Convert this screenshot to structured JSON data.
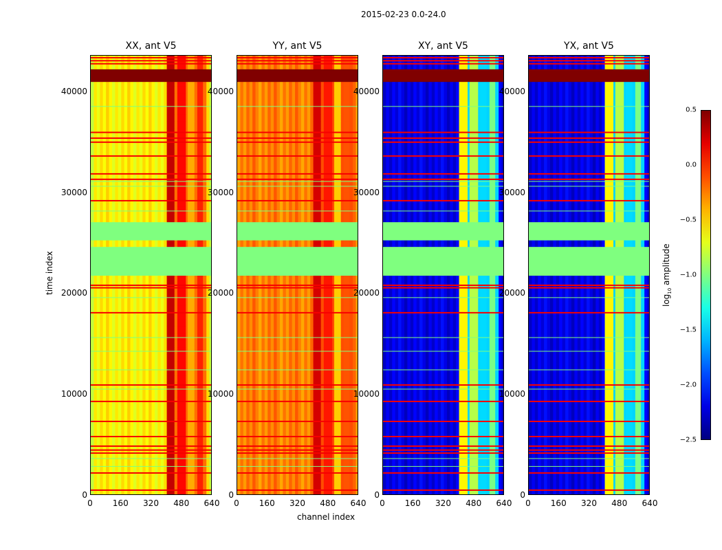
{
  "chart_data": {
    "type": "heatmap",
    "title": "2015-02-23 0.0-24.0",
    "xlabel": "channel index",
    "ylabel": "time index",
    "xlim": [
      0,
      640
    ],
    "ylim": [
      0,
      43600
    ],
    "xticks": [
      "0",
      "160",
      "320",
      "480",
      "640"
    ],
    "yticks": [
      "0",
      "10000",
      "20000",
      "30000",
      "40000"
    ],
    "xtick_values": [
      0,
      160,
      320,
      480,
      640
    ],
    "ytick_values": [
      0,
      10000,
      20000,
      30000,
      40000
    ],
    "colorbar": {
      "label": "log10 amplitude",
      "label_main": "log",
      "label_sub": "10",
      "label_rest": " amplitude",
      "range": [
        -2.5,
        0.5
      ],
      "ticks": [
        "0.5",
        "0.0",
        "−0.5",
        "−1.0",
        "−1.5",
        "−2.0",
        "−2.5"
      ],
      "tick_values": [
        0.5,
        0.0,
        -0.5,
        -1.0,
        -1.5,
        -2.0,
        -2.5
      ],
      "colormap": "jet"
    },
    "panels": [
      {
        "title": "XX, ant V5",
        "base": -0.6,
        "edge": -0.8,
        "rfi": [
          [
            400,
            440,
            0.3
          ],
          [
            455,
            500,
            0.35
          ],
          [
            510,
            545,
            0.1
          ],
          [
            560,
            590,
            0.15
          ]
        ],
        "rfi_bg": -0.2
      },
      {
        "title": "YY, ant V5",
        "base": -0.25,
        "edge": -0.35,
        "rfi": [
          [
            400,
            440,
            0.25
          ],
          [
            455,
            500,
            0.3
          ],
          [
            510,
            545,
            0.0
          ],
          [
            560,
            590,
            0.0
          ]
        ],
        "rfi_bg": -0.1
      },
      {
        "title": "XY, ant V5",
        "base": -2.2,
        "edge": -2.3,
        "rfi": [
          [
            400,
            445,
            -0.6
          ],
          [
            455,
            500,
            -0.6
          ],
          [
            510,
            545,
            -1.0
          ],
          [
            560,
            590,
            -0.9
          ]
        ],
        "rfi_bg": -1.5
      },
      {
        "title": "YX, ant V5",
        "base": -2.2,
        "edge": -2.3,
        "rfi": [
          [
            400,
            445,
            -0.6
          ],
          [
            455,
            500,
            -0.6
          ],
          [
            510,
            545,
            -1.0
          ],
          [
            560,
            590,
            -0.9
          ]
        ],
        "rfi_bg": -1.5
      }
    ],
    "flagged_bands": [
      [
        21800,
        24650
      ],
      [
        25300,
        27100
      ]
    ],
    "strong_band": [
      41000,
      42250
    ],
    "red_rows": [
      43400,
      43100,
      42800,
      36000,
      35430,
      35030,
      33660,
      31890,
      31350,
      29230,
      20850,
      20600,
      18130,
      10970,
      9340,
      7360,
      5860,
      4910,
      4520,
      4220,
      2250,
      550
    ],
    "green_rows": [
      38570,
      31140,
      30660,
      28210,
      19630,
      15670,
      14310,
      12470,
      10560,
      3680,
      2900
    ]
  }
}
